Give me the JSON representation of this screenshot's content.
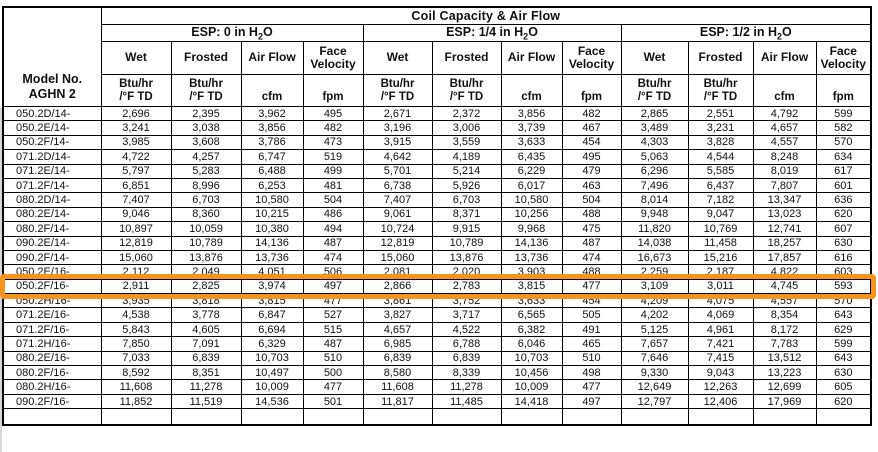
{
  "accent_color": "#f7941d",
  "table": {
    "title": "Coil Capacity & Air Flow",
    "model_header": {
      "line1": "Model No.",
      "line2": "AGHN 2"
    },
    "sections": [
      {
        "esp_pre": "ESP: 0 in H",
        "esp_sub": "2",
        "esp_post": "O"
      },
      {
        "esp_pre": "ESP: 1/4 in H",
        "esp_sub": "2",
        "esp_post": "O"
      },
      {
        "esp_pre": "ESP: 1/2 in H",
        "esp_sub": "2",
        "esp_post": "O"
      }
    ],
    "column_headers": [
      "Wet",
      "Frosted",
      "Air Flow",
      "Face Velocity"
    ],
    "units": [
      {
        "top": "Btu/hr",
        "bottom": "/°F TD"
      },
      {
        "top": "Btu/hr",
        "bottom": "/°F TD"
      },
      {
        "top": "",
        "bottom": "cfm"
      },
      {
        "top": "",
        "bottom": "fpm"
      }
    ],
    "rows": [
      {
        "model": "050.2D/14-",
        "highlighted": false,
        "values": [
          "2,696",
          "2,395",
          "3,962",
          "495",
          "2,671",
          "2,372",
          "3,856",
          "482",
          "2,865",
          "2,551",
          "4,792",
          "599"
        ]
      },
      {
        "model": "050.2E/14-",
        "highlighted": false,
        "values": [
          "3,241",
          "3,038",
          "3,856",
          "482",
          "3,196",
          "3,006",
          "3,739",
          "467",
          "3,489",
          "3,231",
          "4,657",
          "582"
        ]
      },
      {
        "model": "050.2F/14-",
        "highlighted": false,
        "values": [
          "3,985",
          "3,608",
          "3,786",
          "473",
          "3,915",
          "3,559",
          "3,633",
          "454",
          "4,303",
          "3,828",
          "4,557",
          "570"
        ]
      },
      {
        "model": "071.2D/14-",
        "highlighted": false,
        "values": [
          "4,722",
          "4,257",
          "6,747",
          "519",
          "4,642",
          "4,189",
          "6,435",
          "495",
          "5,063",
          "4,544",
          "8,248",
          "634"
        ]
      },
      {
        "model": "071.2E/14-",
        "highlighted": false,
        "values": [
          "5,797",
          "5,283",
          "6,488",
          "499",
          "5,701",
          "5,214",
          "6,229",
          "479",
          "6,296",
          "5,585",
          "8,019",
          "617"
        ]
      },
      {
        "model": "071.2F/14-",
        "highlighted": false,
        "values": [
          "6,851",
          "8,996",
          "6,253",
          "481",
          "6,738",
          "5,926",
          "6,017",
          "463",
          "7,496",
          "6,437",
          "7,807",
          "601"
        ]
      },
      {
        "model": "080.2D/14-",
        "highlighted": false,
        "values": [
          "7,407",
          "6,703",
          "10,580",
          "504",
          "7,407",
          "6,703",
          "10,580",
          "504",
          "8,014",
          "7,182",
          "13,347",
          "636"
        ]
      },
      {
        "model": "080.2E/14-",
        "highlighted": false,
        "values": [
          "9,046",
          "8,360",
          "10,215",
          "486",
          "9,061",
          "8,371",
          "10,256",
          "488",
          "9,948",
          "9,047",
          "13,023",
          "620"
        ]
      },
      {
        "model": "080.2F/14-",
        "highlighted": false,
        "values": [
          "10,897",
          "10,059",
          "10,380",
          "494",
          "10,724",
          "9,915",
          "9,968",
          "475",
          "11,820",
          "10,769",
          "12,741",
          "607"
        ]
      },
      {
        "model": "090.2E/14-",
        "highlighted": false,
        "values": [
          "12,819",
          "10,789",
          "14,136",
          "487",
          "12,819",
          "10,789",
          "14,136",
          "487",
          "14,038",
          "11,458",
          "18,257",
          "630"
        ]
      },
      {
        "model": "090.2F/14-",
        "highlighted": false,
        "values": [
          "15,060",
          "13,876",
          "13,736",
          "474",
          "15,060",
          "13,876",
          "13,736",
          "474",
          "16,673",
          "15,216",
          "17,857",
          "616"
        ]
      },
      {
        "model": "050.2E/16-",
        "highlighted": false,
        "values": [
          "2,112",
          "2,049",
          "4,051",
          "506",
          "2,081",
          "2,020",
          "3,903",
          "488",
          "2,259",
          "2,187",
          "4,822",
          "603"
        ]
      },
      {
        "model": "050.2F/16-",
        "highlighted": true,
        "values": [
          "2,911",
          "2,825",
          "3,974",
          "497",
          "2,866",
          "2,783",
          "3,815",
          "477",
          "3,109",
          "3,011",
          "4,745",
          "593"
        ]
      },
      {
        "model": "050.2H/16-",
        "highlighted": false,
        "values": [
          "3,935",
          "3,818",
          "3,815",
          "477",
          "3,861",
          "3,752",
          "3,633",
          "454",
          "4,209",
          "4,075",
          "4,557",
          "570"
        ]
      },
      {
        "model": "071.2E/16-",
        "highlighted": false,
        "values": [
          "4,538",
          "3,778",
          "6,847",
          "527",
          "3,827",
          "3,717",
          "6,565",
          "505",
          "4,202",
          "4,069",
          "8,354",
          "643"
        ]
      },
      {
        "model": "071.2F/16-",
        "highlighted": false,
        "values": [
          "5,843",
          "4,605",
          "6,694",
          "515",
          "4,657",
          "4,522",
          "6,382",
          "491",
          "5,125",
          "4,961",
          "8,172",
          "629"
        ]
      },
      {
        "model": "071.2H/16-",
        "highlighted": false,
        "values": [
          "7,850",
          "7,091",
          "6,329",
          "487",
          "6,985",
          "6,788",
          "6,046",
          "465",
          "7,657",
          "7,421",
          "7,783",
          "599"
        ]
      },
      {
        "model": "080.2E/16-",
        "highlighted": false,
        "values": [
          "7,033",
          "6,839",
          "10,703",
          "510",
          "6,839",
          "6,839",
          "10,703",
          "510",
          "7,646",
          "7,415",
          "13,512",
          "643"
        ]
      },
      {
        "model": "080.2F/16-",
        "highlighted": false,
        "values": [
          "8,592",
          "8,351",
          "10,497",
          "500",
          "8,580",
          "8,339",
          "10,456",
          "498",
          "9,330",
          "9,043",
          "13,223",
          "630"
        ]
      },
      {
        "model": "080.2H/16-",
        "highlighted": false,
        "values": [
          "11,608",
          "11,278",
          "10,009",
          "477",
          "11,608",
          "11,278",
          "10,009",
          "477",
          "12,649",
          "12,263",
          "12,699",
          "605"
        ]
      },
      {
        "model": "090.2F/16-",
        "highlighted": false,
        "values": [
          "11,852",
          "11,519",
          "14,536",
          "501",
          "11,817",
          "11,485",
          "14,418",
          "497",
          "12,797",
          "12,406",
          "17,969",
          "620"
        ]
      }
    ]
  }
}
